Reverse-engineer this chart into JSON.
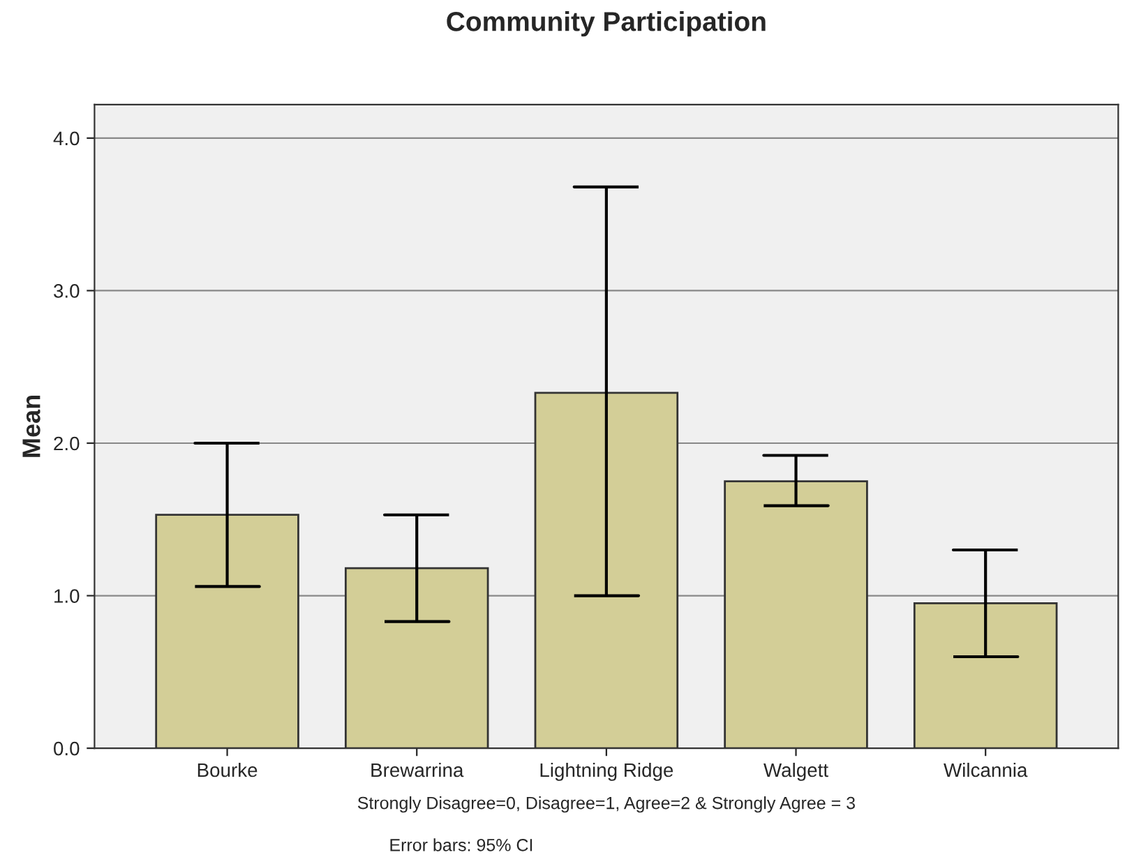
{
  "chart_data": {
    "type": "bar",
    "title": "Community Participation",
    "xlabel": "Strongly Disagree=0, Disagree=1, Agree=2 & Strongly Agree = 3",
    "ylabel": "Mean",
    "annotations": [
      "Error bars: 95% CI"
    ],
    "categories": [
      "Bourke",
      "Brewarrina",
      "Lightning Ridge",
      "Walgett",
      "Wilcannia"
    ],
    "values": [
      1.53,
      1.18,
      2.33,
      1.75,
      0.95
    ],
    "errors": [
      [
        1.06,
        2.0
      ],
      [
        0.83,
        1.53
      ],
      [
        1.0,
        3.68
      ],
      [
        1.59,
        1.92
      ],
      [
        0.6,
        1.3
      ]
    ],
    "color": "#d3ce97",
    "ylim": [
      0,
      4.22
    ],
    "yticks": [
      {
        "value": 0,
        "label": "0.0"
      },
      {
        "value": 1,
        "label": "1.0"
      },
      {
        "value": 2,
        "label": "2.0"
      },
      {
        "value": 3,
        "label": "3.0"
      },
      {
        "value": 4,
        "label": "4.0"
      }
    ],
    "grid": "y"
  }
}
